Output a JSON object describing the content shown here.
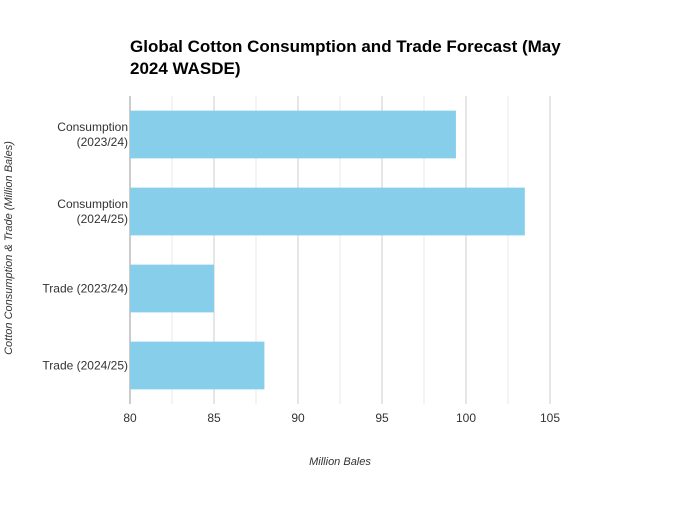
{
  "chart_data": {
    "type": "bar",
    "orientation": "horizontal",
    "title": "Global Cotton Consumption and Trade Forecast (May 2024 WASDE)",
    "title_lines": [
      "Global Cotton Consumption and Trade Forecast (May",
      "2024 WASDE)"
    ],
    "xlabel": "Million Bales",
    "ylabel": "Cotton Consumption & Trade (Million Bales)",
    "categories": [
      [
        "Consumption",
        "(2023/24)"
      ],
      [
        "Consumption",
        "(2024/25)"
      ],
      [
        "Trade (2023/24)"
      ],
      [
        "Trade (2024/25)"
      ]
    ],
    "values": [
      99.4,
      103.5,
      85.0,
      88.0
    ],
    "xlim": [
      80,
      105
    ],
    "x_ticks": [
      80,
      85,
      90,
      95,
      100,
      105
    ],
    "grid": true,
    "legend": "none",
    "colors": {
      "bar": "#87ceeb",
      "grid_major": "#cccccc",
      "grid_minor": "#e8e8e8",
      "axis": "#999999",
      "text": "#333333",
      "title": "#000000"
    }
  }
}
